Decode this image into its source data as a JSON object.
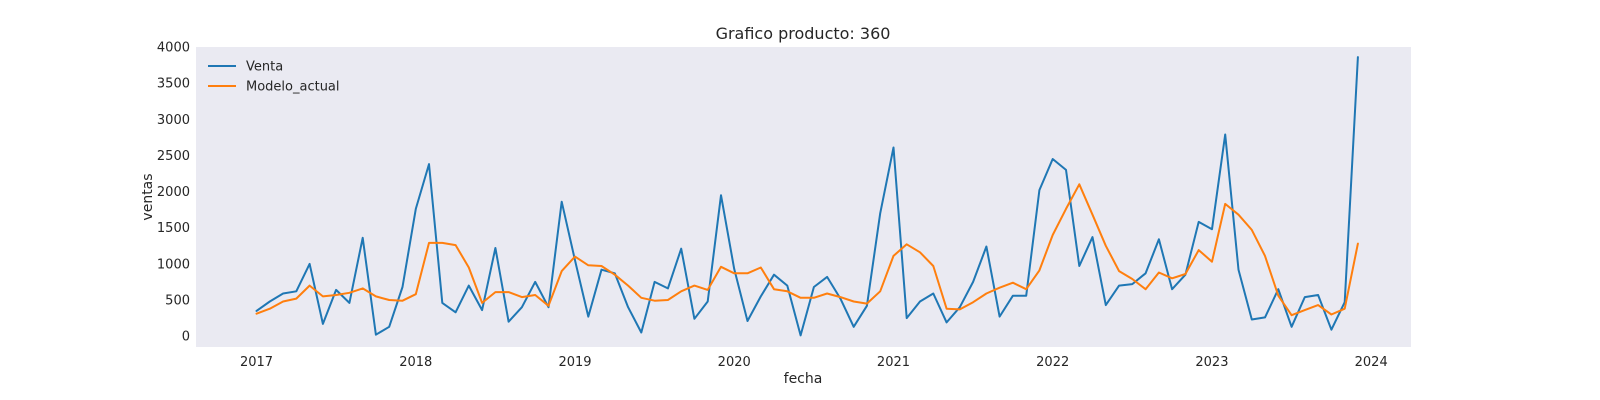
{
  "chart_data": {
    "type": "line",
    "title": "Grafico producto: 360",
    "xlabel": "fecha",
    "ylabel": "ventas",
    "x_start": "2017-01",
    "xlim": [
      2016.62,
      2024.25
    ],
    "ylim": [
      -150,
      4000
    ],
    "xticks": [
      "2017",
      "2018",
      "2019",
      "2020",
      "2021",
      "2022",
      "2023",
      "2024"
    ],
    "yticks": [
      0,
      500,
      1000,
      1500,
      2000,
      2500,
      3000,
      3500,
      4000
    ],
    "grid": false,
    "legend": "top-left",
    "background": "#eaeaf2",
    "series": [
      {
        "name": "Venta",
        "color": "#1f77b4",
        "values": [
          350,
          480,
          590,
          620,
          1000,
          170,
          640,
          460,
          1360,
          20,
          130,
          680,
          1760,
          2380,
          460,
          330,
          700,
          360,
          1220,
          200,
          400,
          750,
          400,
          1860,
          1050,
          270,
          920,
          870,
          400,
          50,
          750,
          660,
          1210,
          240,
          480,
          1950,
          930,
          210,
          550,
          850,
          700,
          10,
          680,
          820,
          520,
          130,
          420,
          1700,
          2610,
          250,
          480,
          590,
          190,
          400,
          750,
          1240,
          270,
          560,
          560,
          2020,
          2450,
          2300,
          970,
          1370,
          430,
          700,
          720,
          870,
          1340,
          650,
          850,
          1580,
          1480,
          2790,
          920,
          230,
          260,
          650,
          130,
          540,
          570,
          90,
          470,
          3860
        ]
      },
      {
        "name": "Modelo_actual",
        "color": "#ff7f0e",
        "values": [
          310,
          380,
          480,
          520,
          700,
          550,
          570,
          600,
          660,
          550,
          500,
          490,
          580,
          1290,
          1290,
          1260,
          950,
          460,
          610,
          610,
          540,
          570,
          420,
          900,
          1100,
          980,
          970,
          850,
          700,
          530,
          490,
          500,
          620,
          700,
          640,
          960,
          870,
          870,
          950,
          650,
          620,
          530,
          530,
          590,
          540,
          480,
          450,
          620,
          1110,
          1270,
          1160,
          970,
          380,
          370,
          470,
          590,
          670,
          740,
          650,
          910,
          1400,
          1760,
          2100,
          1680,
          1250,
          900,
          790,
          650,
          880,
          800,
          860,
          1190,
          1030,
          1830,
          1680,
          1470,
          1110,
          560,
          290,
          360,
          430,
          300,
          380,
          1280
        ]
      }
    ]
  }
}
